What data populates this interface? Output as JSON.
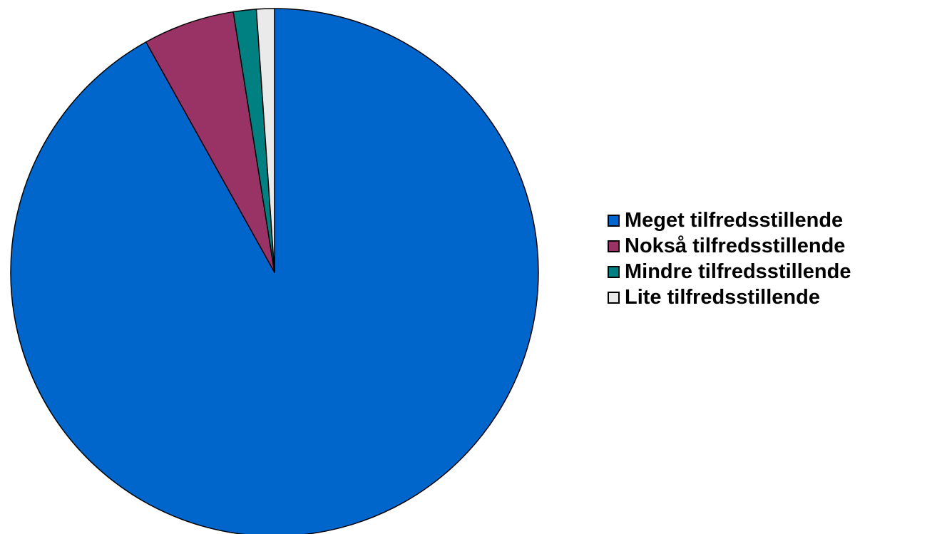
{
  "chart_data": {
    "type": "pie",
    "title": "",
    "start_angle_deg": 0,
    "direction": "clockwise",
    "legend_position": "right",
    "slices": [
      {
        "label": "Meget tilfredsstillende",
        "value": 91.9,
        "color": "#0066CC"
      },
      {
        "label": "Nokså tilfredsstillende",
        "value": 5.6,
        "color": "#993366"
      },
      {
        "label": "Mindre tilfredsstillende",
        "value": 1.4,
        "color": "#008080"
      },
      {
        "label": "Lite tilfredsstillende",
        "value": 1.1,
        "color": "#EAEAEA"
      }
    ]
  }
}
